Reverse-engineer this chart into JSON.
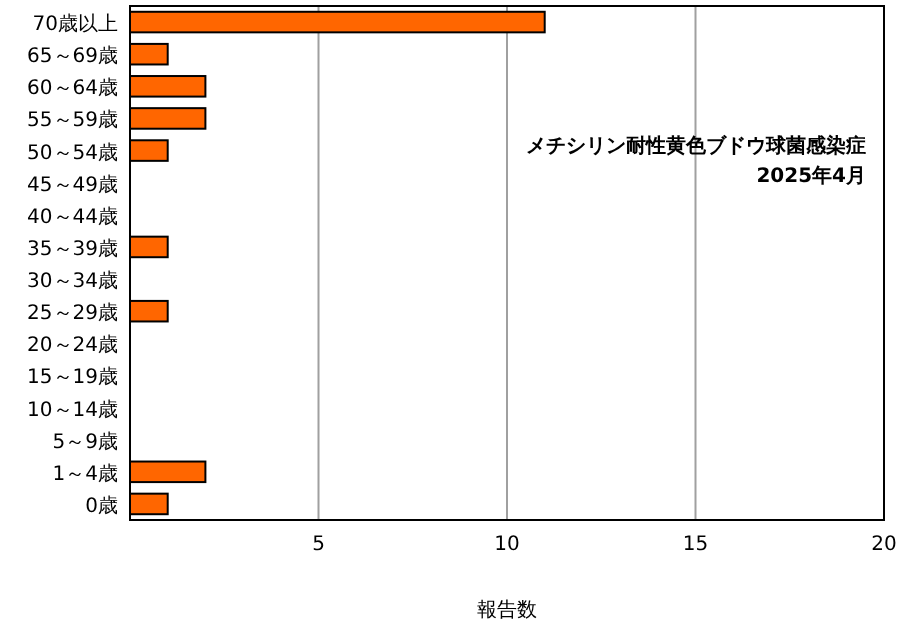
{
  "chart_data": {
    "type": "bar",
    "orientation": "horizontal",
    "categories": [
      "70歳以上",
      "65～69歳",
      "60～64歳",
      "55～59歳",
      "50～54歳",
      "45～49歳",
      "40～44歳",
      "35～39歳",
      "30～34歳",
      "25～29歳",
      "20～24歳",
      "15～19歳",
      "10～14歳",
      "5～9歳",
      "1～4歳",
      "0歳"
    ],
    "values": [
      11,
      1,
      2,
      2,
      1,
      0,
      0,
      1,
      0,
      1,
      0,
      0,
      0,
      0,
      2,
      1
    ],
    "color": "#ff6600",
    "xlim": [
      0,
      20
    ],
    "xticks": [
      {
        "value": 0,
        "label": null
      },
      5,
      10,
      15,
      20
    ],
    "xlabel": "報告数",
    "grid": "x",
    "annotations": [
      "メチシリン耐性黄色ブドウ球菌感染症",
      "2025年4月"
    ]
  }
}
